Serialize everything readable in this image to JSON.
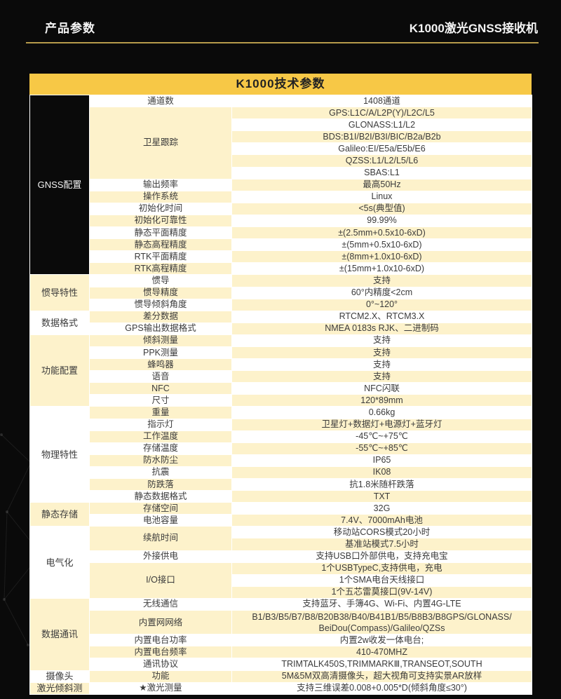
{
  "header": {
    "left_title": "产品参数",
    "right_title": "K1000激光GNSS接收机"
  },
  "colors": {
    "page_background": "#0a0a0a",
    "title_bar_yellow": "#f7c846",
    "row_cream": "#fdf2cb",
    "row_white": "#ffffff",
    "divider_gold": "#b79b4b",
    "text_dark": "#3b3b3b",
    "text_light": "#f2f2f2"
  },
  "table": {
    "title": "K1000技术参数",
    "sections": [
      {
        "category": "GNSS配置",
        "dark": true,
        "rows": [
          {
            "label": "通道数",
            "values": [
              "1408通道"
            ]
          },
          {
            "label": "卫星跟踪",
            "values": [
              "GPS:L1C/A/L2P(Y)/L2C/L5",
              "GLONASS:L1/L2",
              "BDS:B1I/B2I/B3I/BIC/B2a/B2b",
              "Galileo:EI/E5a/E5b/E6",
              "QZSS:L1/L2/L5/L6",
              "SBAS:L1"
            ]
          },
          {
            "label": "输出频率",
            "values": [
              "最高50Hz"
            ]
          },
          {
            "label": "操作系统",
            "values": [
              "Linux"
            ]
          },
          {
            "label": "初始化时间",
            "values": [
              "<5s(典型值)"
            ]
          },
          {
            "label": "初始化可靠性",
            "values": [
              "99.99%"
            ]
          },
          {
            "label": "静态平面精度",
            "values": [
              "±(2.5mm+0.5x10-6xD)"
            ]
          },
          {
            "label": "静态高程精度",
            "values": [
              "±(5mm+0.5x10-6xD)"
            ]
          },
          {
            "label": "RTK平面精度",
            "values": [
              "±(8mm+1.0x10-6xD)"
            ]
          },
          {
            "label": "RTK高程精度",
            "values": [
              "±(15mm+1.0x10-6xD)"
            ]
          }
        ]
      },
      {
        "category": "惯导特性",
        "rows": [
          {
            "label": "惯导",
            "values": [
              "支持"
            ]
          },
          {
            "label": "惯导精度",
            "values": [
              "60°内精度<2cm"
            ]
          },
          {
            "label": "惯导倾斜角度",
            "values": [
              "0°~120°"
            ]
          }
        ]
      },
      {
        "category": "数据格式",
        "rows": [
          {
            "label": "差分数据",
            "values": [
              "RTCM2.X、RTCM3.X"
            ]
          },
          {
            "label": "GPS输出数据格式",
            "values": [
              "NMEA 0183s RJK、二进制码"
            ]
          }
        ]
      },
      {
        "category": "功能配置",
        "rows": [
          {
            "label": "倾斜测量",
            "values": [
              "支持"
            ]
          },
          {
            "label": "PPK测量",
            "values": [
              "支持"
            ]
          },
          {
            "label": "蜂鸣器",
            "values": [
              "支持"
            ]
          },
          {
            "label": "语音",
            "values": [
              "支持"
            ]
          },
          {
            "label": "NFC",
            "values": [
              "NFC闪联"
            ]
          },
          {
            "label": "尺寸",
            "values": [
              "120*89mm"
            ]
          }
        ]
      },
      {
        "category": "物理特性",
        "rows": [
          {
            "label": "重量",
            "values": [
              "0.66kg"
            ]
          },
          {
            "label": "指示灯",
            "values": [
              "卫星灯+数据灯+电源灯+蓝牙灯"
            ]
          },
          {
            "label": "工作温度",
            "values": [
              "-45℃~+75℃"
            ]
          },
          {
            "label": "存储温度",
            "values": [
              "-55℃~+85℃"
            ]
          },
          {
            "label": "防水防尘",
            "values": [
              "IP65"
            ]
          },
          {
            "label": "抗震",
            "values": [
              "IK08"
            ]
          },
          {
            "label": "防跌落",
            "values": [
              "抗1.8米随杆跌落"
            ]
          },
          {
            "label": "静态数据格式",
            "values": [
              "TXT"
            ]
          }
        ]
      },
      {
        "category": "静态存储",
        "rows": [
          {
            "label": "存储空间",
            "values": [
              "32G"
            ]
          },
          {
            "label": "电池容量",
            "values": [
              "7.4V、7000mAh电池"
            ]
          }
        ]
      },
      {
        "category": "电气化",
        "rows": [
          {
            "label": "续航时间",
            "values": [
              "移动站CORS模式20小时",
              "基准站模式7.5小时"
            ]
          },
          {
            "label": "外接供电",
            "values": [
              "支持USB口外部供电，支持充电宝"
            ]
          },
          {
            "label": "I/O接口",
            "values": [
              "1个USBTypeC,支持供电，充电",
              "1个SMA电台天线接口",
              "1个五芯雷莫接口(9V-14V)"
            ]
          }
        ]
      },
      {
        "category": "数据通讯",
        "rows": [
          {
            "label": "无线通信",
            "values": [
              "支持蓝牙、手簿4G、Wi-Fi、内置4G-LTE"
            ]
          },
          {
            "label": "内置网网络",
            "tall": true,
            "values": [
              "B1/B3/B5/B7/B8/B20B38/B40/B41B1/B5/B8B3/B8GPS/GLONASS/\nBeiDou(Compass)/Galileo/QZSs"
            ]
          },
          {
            "label": "内置电台功率",
            "values": [
              "内置2w收发一体电台;"
            ]
          },
          {
            "label": "内置电台频率",
            "values": [
              "410-470MHZ"
            ]
          },
          {
            "label": "通讯协议",
            "values": [
              "TRIMTALK450S,TRIMMARKⅢ,TRANSEOT,SOUTH"
            ]
          }
        ]
      },
      {
        "category": "摄像头",
        "rows": [
          {
            "label": "功能",
            "values": [
              "5M&5M双高清摄像头，超大视角可支持实景AR放样"
            ]
          }
        ]
      },
      {
        "category": "激光倾斜测",
        "rows": [
          {
            "label": "★激光测量",
            "values": [
              "支持三维误差0.008+0.005*D(倾斜角度≤30°)"
            ]
          }
        ]
      }
    ]
  }
}
